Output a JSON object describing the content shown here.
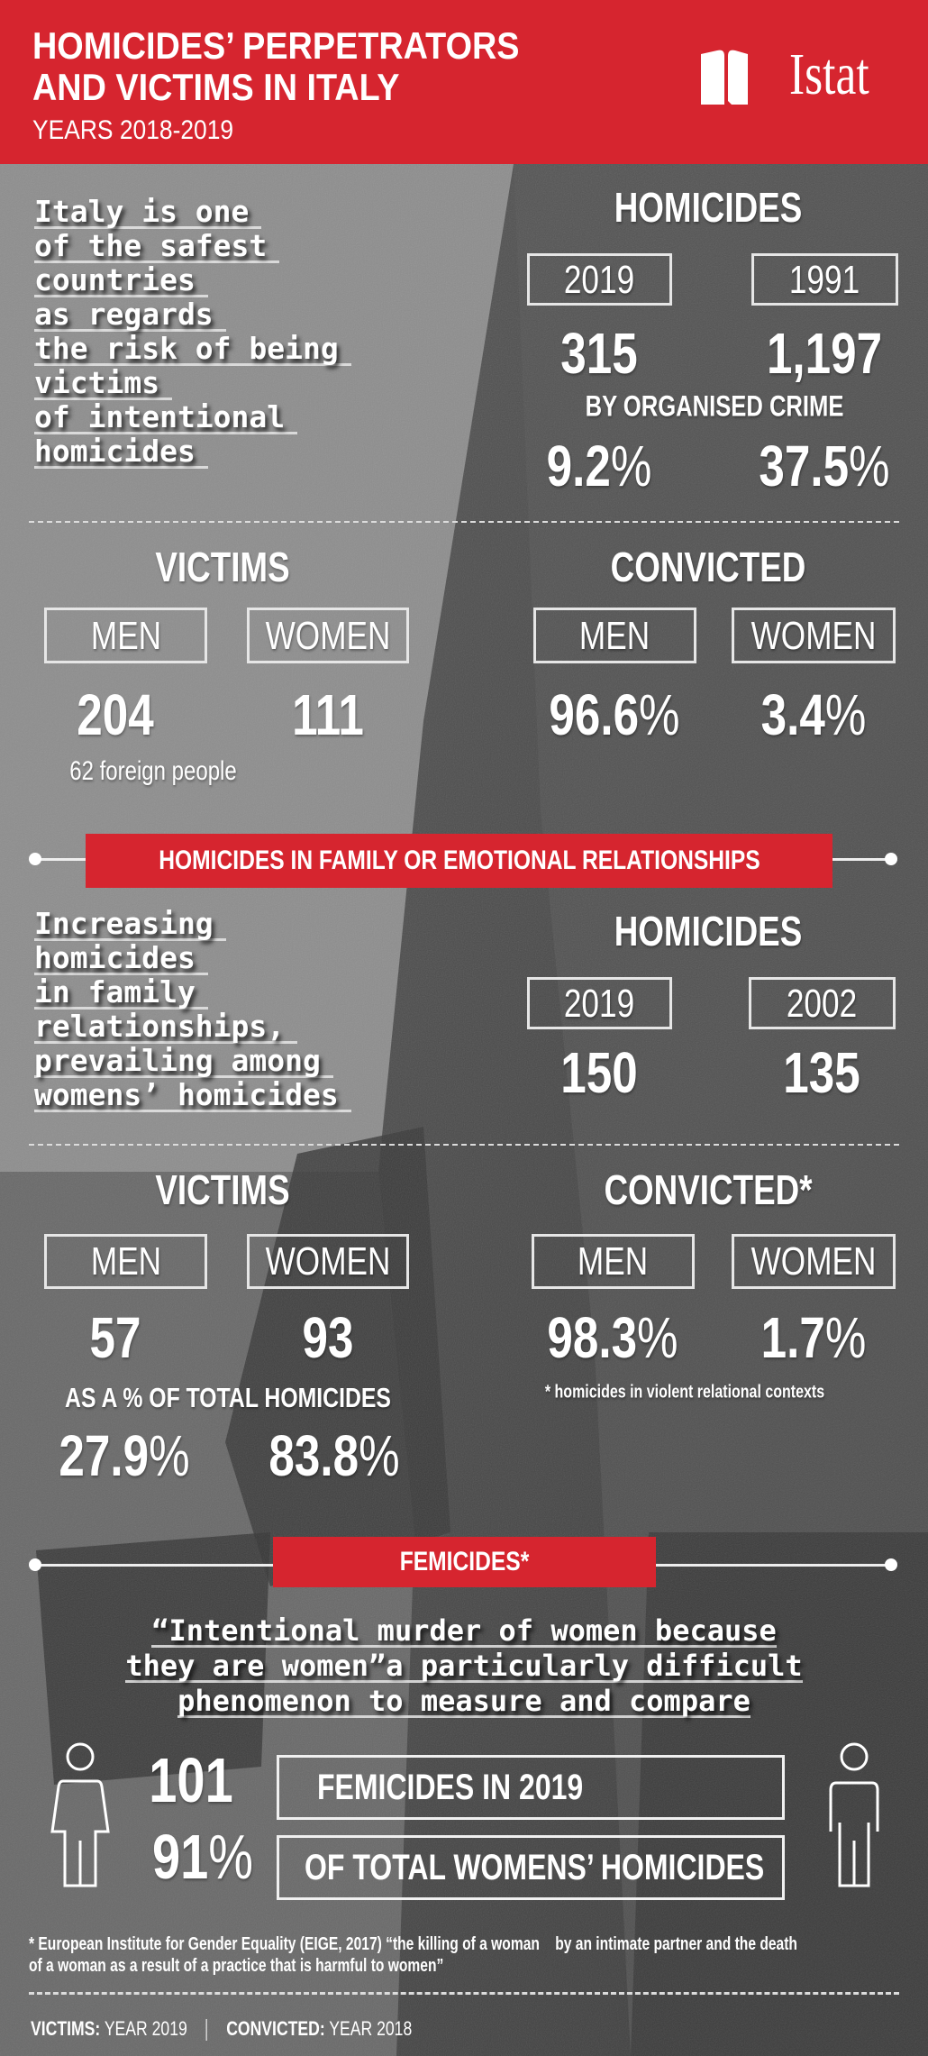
{
  "colors": {
    "brand_red": "#d6252f",
    "text": "#ffffff",
    "background": "#4a4a4a"
  },
  "header": {
    "title_lines": [
      "HOMICIDES’ PERPETRATORS",
      "AND VICTIMS IN ITALY"
    ],
    "subtitle": "YEARS 2018-2019",
    "logo_text": "Istat"
  },
  "section1": {
    "statement_lines": [
      "Italy is one",
      "of the safest",
      "countries",
      "as regards",
      "the risk of being",
      "victims",
      "of intentional",
      "homicides"
    ],
    "homicides_title": "HOMICIDES",
    "years": [
      "2019",
      "1991"
    ],
    "counts": [
      "315",
      "1,197"
    ],
    "organised_label": "BY ORGANISED CRIME",
    "organised_pct": [
      "9.2",
      "37.5"
    ],
    "victims_title": "VICTIMS",
    "convicted_title": "CONVICTED",
    "men_label": "MEN",
    "women_label": "WOMEN",
    "victims_men": "204",
    "victims_women": "111",
    "foreign_note": "62 foreign people",
    "convicted_men_pct": "96.6",
    "convicted_women_pct": "3.4"
  },
  "section2": {
    "banner": "HOMICIDES IN FAMILY OR EMOTIONAL RELATIONSHIPS",
    "statement_lines": [
      "Increasing",
      "homicides",
      "in family",
      "relationships,",
      "prevailing among",
      "womens’ homicides"
    ],
    "homicides_title": "HOMICIDES",
    "years": [
      "2019",
      "2002"
    ],
    "counts": [
      "150",
      "135"
    ],
    "victims_title": "VICTIMS",
    "convicted_title": "CONVICTED*",
    "men_label": "MEN",
    "women_label": "WOMEN",
    "victims_men": "57",
    "victims_women": "93",
    "share_label": "AS A % OF TOTAL HOMICIDES",
    "share_men_pct": "27.9",
    "share_women_pct": "83.8",
    "convicted_men_pct": "98.3",
    "convicted_women_pct": "1.7",
    "convicted_note": "* homicides in violent relational contexts"
  },
  "section3": {
    "banner": "FEMICIDES*",
    "quote_lines": [
      "“Intentional murder of women because",
      "they are women”a particularly difficult",
      "phenomenon to measure and compare"
    ],
    "femicides_count": "101",
    "femicides_label": "FEMICIDES IN 2019",
    "femicides_pct": "91",
    "femicides_pct_label": "OF TOTAL WOMENS’ HOMICIDES",
    "icons": [
      "woman-icon",
      "man-icon"
    ]
  },
  "footnote_lines": [
    "* European Institute for Gender Equality (EIGE, 2017) “the killing of a woman    by an intimate partner and the death",
    "of a woman as a result of a practice that is harmful to women”"
  ],
  "footer": {
    "victims_key": "VICTIMS:",
    "victims_val": " YEAR 2019",
    "convicted_key": "CONVICTED:",
    "convicted_val": " YEAR 2018"
  },
  "percent_symbol": "%"
}
